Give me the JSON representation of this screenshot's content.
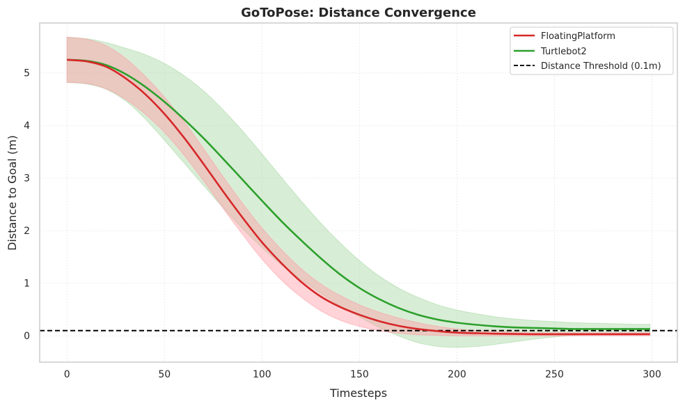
{
  "chart_data": {
    "type": "line",
    "title": "GoToPose: Distance Convergence",
    "xlabel": "Timesteps",
    "ylabel": "Distance to Goal (m)",
    "xlim": [
      -14,
      313
    ],
    "ylim": [
      -0.5,
      5.95
    ],
    "xticks": [
      0,
      50,
      100,
      150,
      200,
      250,
      300
    ],
    "yticks": [
      0,
      1,
      2,
      3,
      4,
      5
    ],
    "grid": true,
    "legend_position": "top-right",
    "x": [
      0,
      10,
      20,
      30,
      40,
      50,
      60,
      70,
      80,
      90,
      100,
      110,
      120,
      130,
      140,
      150,
      160,
      170,
      180,
      190,
      200,
      210,
      220,
      230,
      240,
      250,
      260,
      270,
      280,
      290,
      299
    ],
    "series": [
      {
        "name": "FloatingPlatform",
        "color": "#d62728",
        "band_color": "#ff9da6",
        "mean": [
          5.25,
          5.22,
          5.12,
          4.9,
          4.6,
          4.22,
          3.77,
          3.27,
          2.75,
          2.25,
          1.78,
          1.38,
          1.03,
          0.75,
          0.55,
          0.4,
          0.28,
          0.19,
          0.13,
          0.09,
          0.06,
          0.05,
          0.04,
          0.035,
          0.03,
          0.03,
          0.03,
          0.03,
          0.03,
          0.03,
          0.03
        ],
        "upper": [
          5.68,
          5.64,
          5.52,
          5.28,
          4.94,
          4.54,
          4.08,
          3.56,
          3.03,
          2.52,
          2.05,
          1.64,
          1.28,
          0.99,
          0.77,
          0.59,
          0.45,
          0.34,
          0.25,
          0.18,
          0.13,
          0.1,
          0.08,
          0.07,
          0.06,
          0.06,
          0.06,
          0.06,
          0.06,
          0.06,
          0.06
        ],
        "lower": [
          4.82,
          4.8,
          4.7,
          4.5,
          4.22,
          3.87,
          3.44,
          2.95,
          2.43,
          1.93,
          1.46,
          1.06,
          0.74,
          0.48,
          0.3,
          0.18,
          0.1,
          0.05,
          0.02,
          0.01,
          0.0,
          0.0,
          0.0,
          0.0,
          0.0,
          0.0,
          0.0,
          0.0,
          0.0,
          0.0,
          0.0
        ]
      },
      {
        "name": "Turtlebot2",
        "color": "#2ca02c",
        "band_color": "#a9d8a4",
        "mean": [
          5.25,
          5.23,
          5.15,
          4.98,
          4.74,
          4.45,
          4.12,
          3.76,
          3.37,
          2.97,
          2.57,
          2.18,
          1.82,
          1.48,
          1.17,
          0.91,
          0.7,
          0.53,
          0.4,
          0.31,
          0.25,
          0.21,
          0.18,
          0.16,
          0.15,
          0.14,
          0.13,
          0.13,
          0.13,
          0.13,
          0.13
        ],
        "upper": [
          5.68,
          5.65,
          5.58,
          5.47,
          5.35,
          5.18,
          4.95,
          4.66,
          4.3,
          3.9,
          3.46,
          3.01,
          2.57,
          2.15,
          1.77,
          1.43,
          1.14,
          0.91,
          0.73,
          0.59,
          0.49,
          0.42,
          0.36,
          0.32,
          0.29,
          0.27,
          0.25,
          0.24,
          0.23,
          0.22,
          0.22
        ],
        "lower": [
          4.82,
          4.79,
          4.69,
          4.47,
          4.13,
          3.72,
          3.29,
          2.86,
          2.44,
          2.04,
          1.68,
          1.35,
          1.07,
          0.81,
          0.57,
          0.36,
          0.16,
          0.0,
          -0.13,
          -0.2,
          -0.22,
          -0.2,
          -0.16,
          -0.11,
          -0.06,
          -0.02,
          0.01,
          0.03,
          0.04,
          0.04,
          0.04
        ]
      }
    ],
    "threshold": {
      "name": "Distance Threshold (0.1m)",
      "value": 0.1,
      "color": "#000000"
    }
  }
}
